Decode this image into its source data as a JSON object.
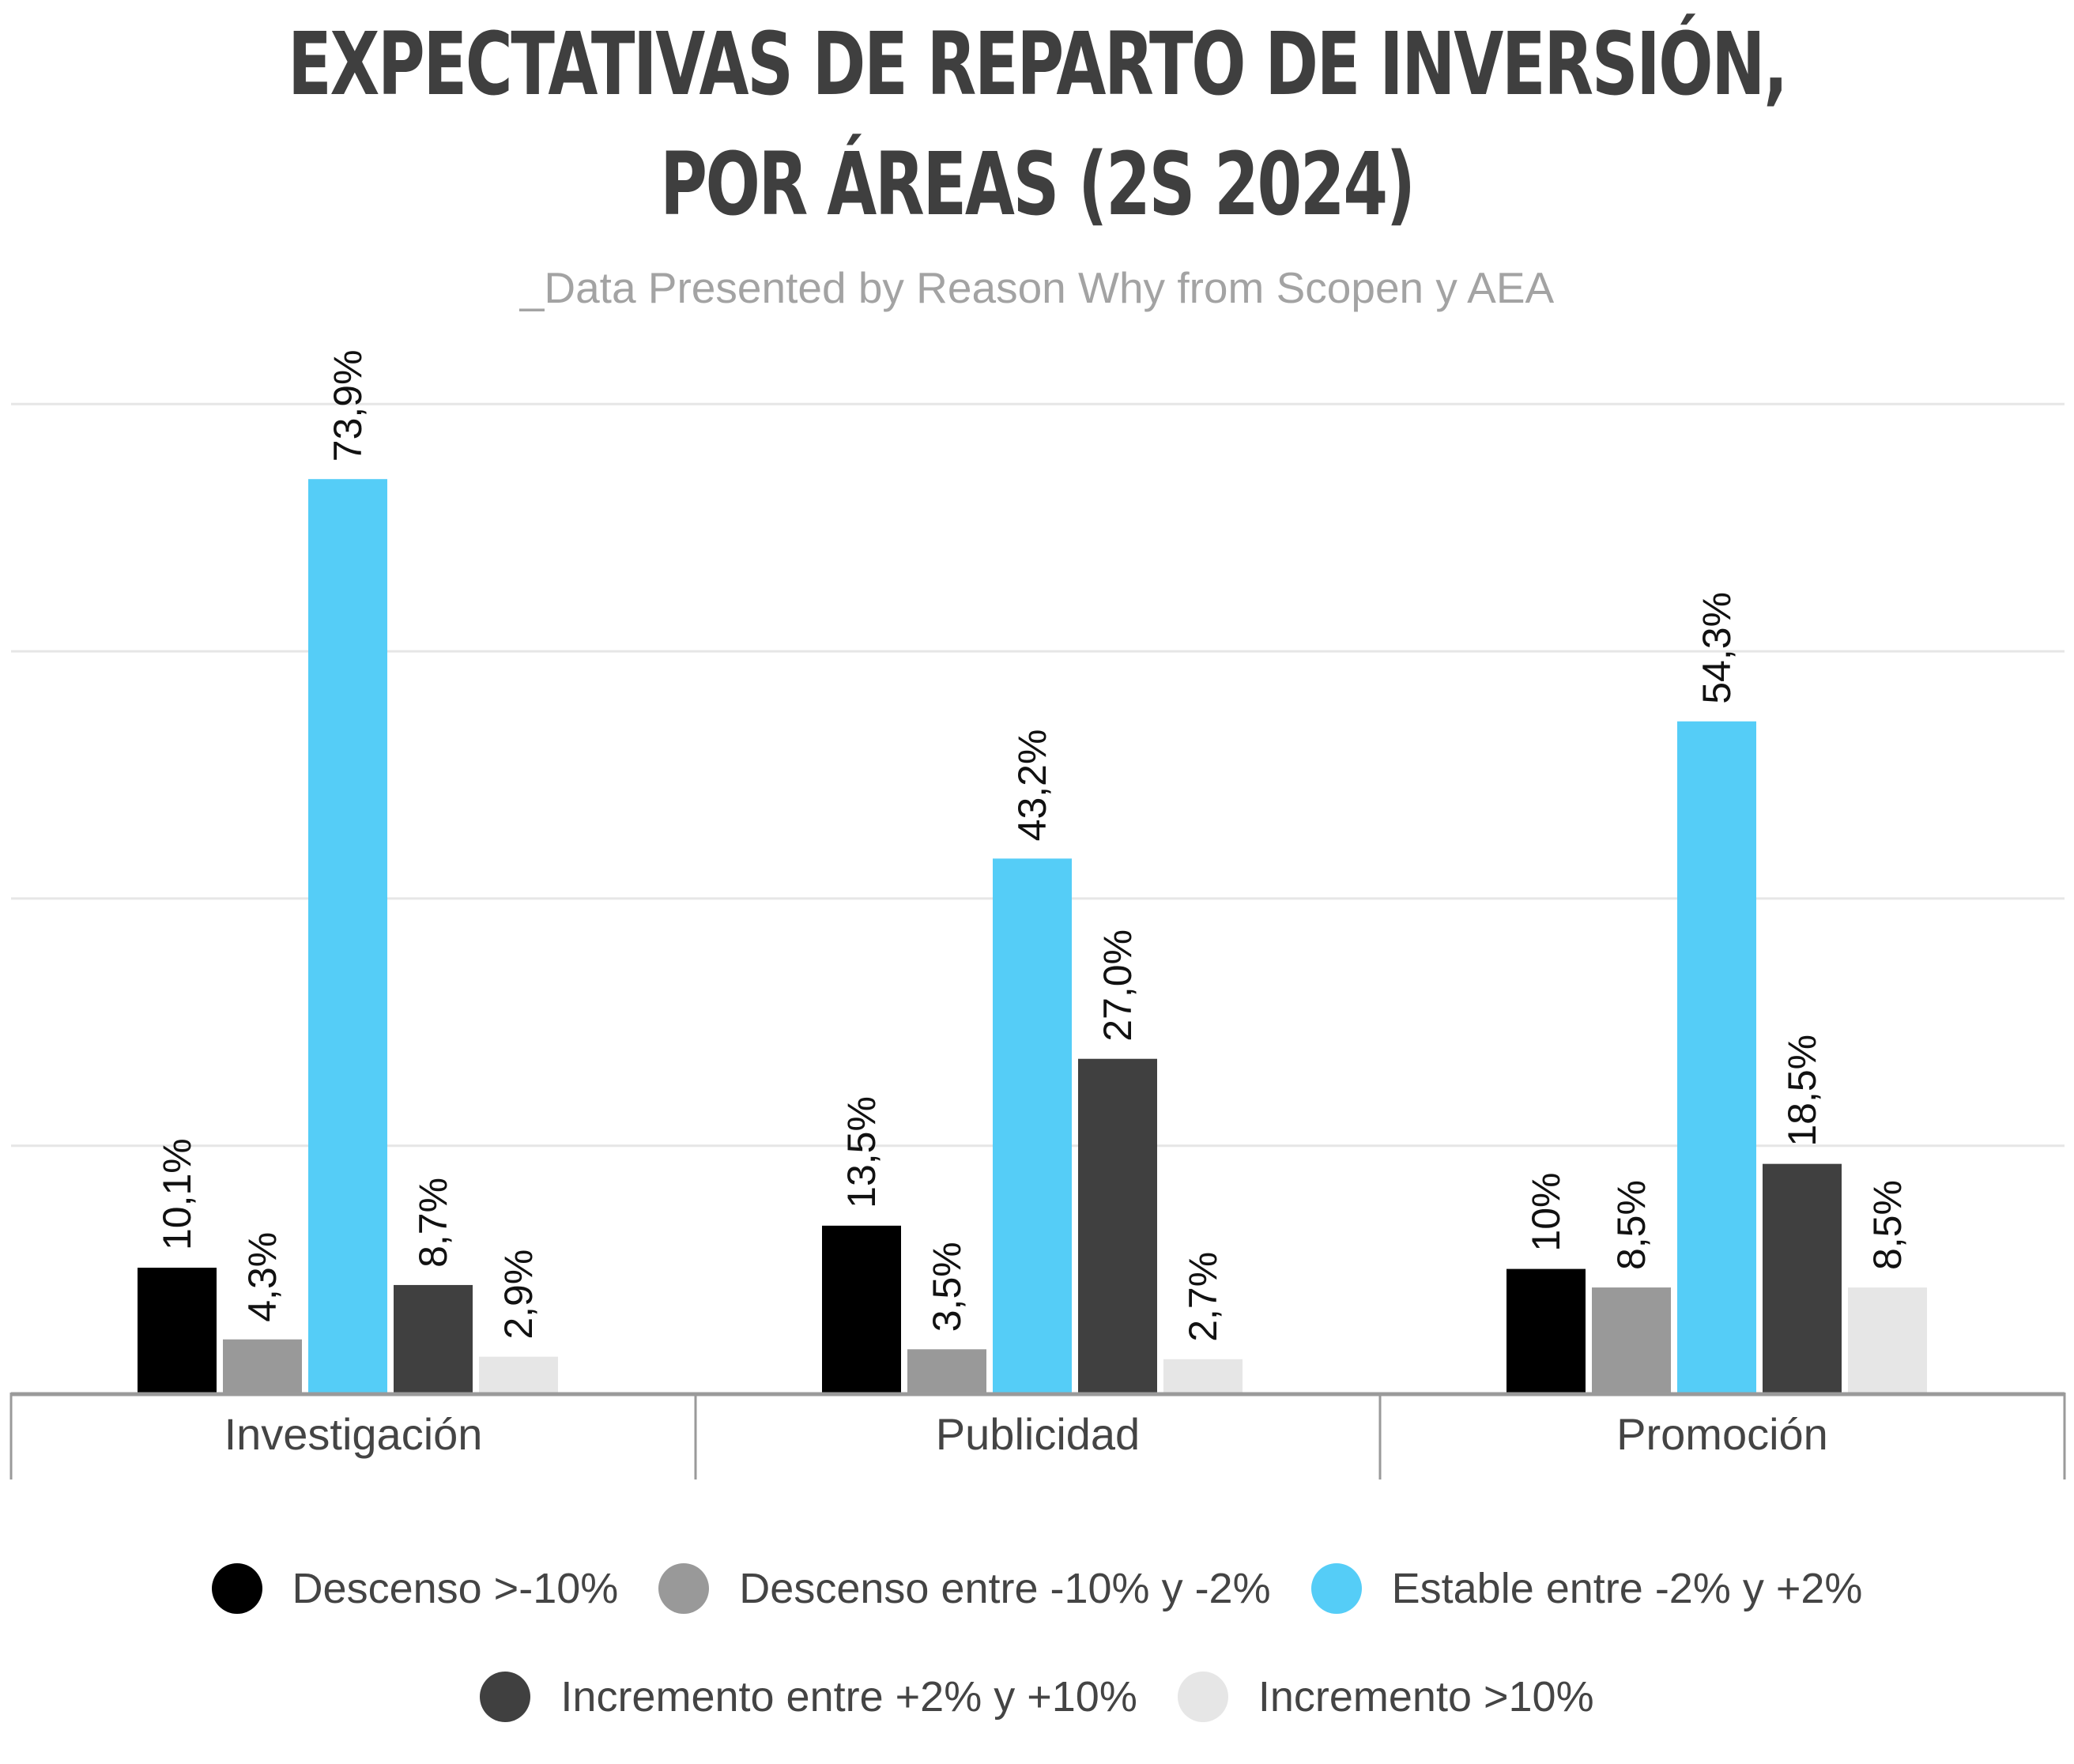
{
  "chart_data": {
    "type": "bar",
    "title_lines": [
      "EXPECTATIVAS DE REPARTO DE INVERSIÓN,",
      "POR ÁREAS (2S 2024)"
    ],
    "subtitle": "_Data Presented by Reason Why from Scopen y AEA",
    "categories": [
      "Investigación",
      "Publicidad",
      "Promoción"
    ],
    "series": [
      {
        "name": "Descenso >-10%",
        "color": "#000000",
        "values": [
          10.1,
          13.5,
          10
        ],
        "labels": [
          "10,1%",
          "13,5%",
          "10%"
        ]
      },
      {
        "name": "Descenso entre -10% y -2%",
        "color": "#999999",
        "values": [
          4.3,
          3.5,
          8.5
        ],
        "labels": [
          "4,3%",
          "3,5%",
          "8,5%"
        ]
      },
      {
        "name": "Estable entre -2% y +2%",
        "color": "#55cdf7",
        "values": [
          73.9,
          43.2,
          54.3
        ],
        "labels": [
          "73,9%",
          "43,2%",
          "54,3%"
        ]
      },
      {
        "name": "Incremento entre +2% y +10%",
        "color": "#404040",
        "values": [
          8.7,
          27.0,
          18.5
        ],
        "labels": [
          "8,7%",
          "27,0%",
          "18,5%"
        ]
      },
      {
        "name": "Incremento >10%",
        "color": "#e6e6e6",
        "values": [
          2.9,
          2.7,
          8.5
        ],
        "labels": [
          "2,9%",
          "2,7%",
          "8,5%"
        ]
      }
    ],
    "ylim": [
      0,
      80
    ],
    "grid": true,
    "legend_position": "bottom"
  }
}
